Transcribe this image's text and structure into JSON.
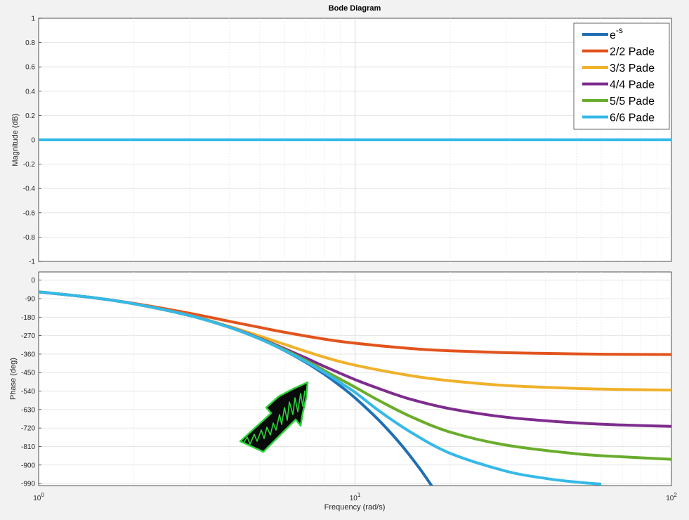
{
  "chart_data": {
    "type": "line",
    "title": "Bode Diagram",
    "xlabel": "Frequency  (rad/s)",
    "x_scale": "log",
    "xlim": [
      1,
      100
    ],
    "x_ticks": [
      {
        "value": 1,
        "base": "10",
        "exp": "0"
      },
      {
        "value": 10,
        "base": "10",
        "exp": "1"
      },
      {
        "value": 100,
        "base": "10",
        "exp": "2"
      }
    ],
    "grid": true,
    "legend_position": "top-right",
    "magnitude": {
      "ylabel": "Magnitude (dB)",
      "ylim": [
        -1,
        1
      ],
      "y_ticks": [
        "-1",
        "-0.8",
        "-0.6",
        "-0.4",
        "-0.2",
        "0",
        "0.2",
        "0.4",
        "0.6",
        "0.8",
        "1"
      ],
      "y_tick_values": [
        -1,
        -0.8,
        -0.6,
        -0.4,
        -0.2,
        0,
        0.2,
        0.4,
        0.6,
        0.8,
        1
      ],
      "value_db": 0
    },
    "phase": {
      "ylabel": "Phase (deg)",
      "ylim": [
        -1000,
        40
      ],
      "y_ticks": [
        "0",
        "-90",
        "-180",
        "-270",
        "-360",
        "-450",
        "-540",
        "-630",
        "-720",
        "-810",
        "-900",
        "-990"
      ],
      "y_tick_values": [
        0,
        -90,
        -180,
        -270,
        -360,
        -450,
        -540,
        -630,
        -720,
        -810,
        -900,
        -990
      ]
    },
    "series": [
      {
        "name": "e",
        "name_sup": "-s",
        "color": "#1f6fb4",
        "order": 1,
        "x": [
          1,
          1.5,
          2,
          3,
          4,
          5,
          6,
          7,
          8,
          9,
          10,
          12,
          14,
          16,
          17.5
        ],
        "y": [
          -57,
          -86,
          -115,
          -172,
          -229,
          -286,
          -344,
          -401,
          -458,
          -516,
          -573,
          -688,
          -802,
          -917,
          -1003
        ]
      },
      {
        "name": "2/2 Pade",
        "color": "#e2531d",
        "order": 2,
        "x": [
          1,
          1.5,
          2,
          3,
          4,
          5,
          6,
          8,
          10,
          15,
          20,
          30,
          50,
          70,
          100
        ],
        "y": [
          -57,
          -86,
          -113,
          -161,
          -200,
          -230,
          -254,
          -287,
          -307,
          -333,
          -344,
          -353,
          -359,
          -361,
          -362
        ]
      },
      {
        "name": "3/3 Pade",
        "color": "#f0b12a",
        "order": 3,
        "x": [
          1,
          1.5,
          2,
          3,
          4,
          5,
          6,
          8,
          10,
          15,
          20,
          30,
          50,
          70,
          100
        ],
        "y": [
          -57,
          -86,
          -115,
          -171,
          -225,
          -272,
          -313,
          -375,
          -414,
          -465,
          -490,
          -513,
          -527,
          -532,
          -535
        ]
      },
      {
        "name": "4/4 Pade",
        "color": "#7e2c8e",
        "order": 4,
        "x": [
          1,
          1.5,
          2,
          3,
          4,
          5,
          6,
          7,
          8,
          10,
          12,
          15,
          20,
          30,
          50,
          70,
          100
        ],
        "y": [
          -57,
          -86,
          -115,
          -172,
          -228,
          -283,
          -334,
          -379,
          -420,
          -484,
          -530,
          -580,
          -626,
          -667,
          -695,
          -705,
          -712
        ]
      },
      {
        "name": "5/5 Pade",
        "color": "#6aac2c",
        "order": 5,
        "x": [
          1,
          1.5,
          2,
          3,
          4,
          5,
          6,
          7,
          8,
          9,
          10,
          12,
          15,
          20,
          30,
          50,
          70,
          100
        ],
        "y": [
          -57,
          -86,
          -115,
          -172,
          -229,
          -285,
          -339,
          -391,
          -440,
          -483,
          -521,
          -589,
          -664,
          -740,
          -803,
          -845,
          -860,
          -872
        ]
      },
      {
        "name": "6/6 Pade",
        "color": "#35b9e8",
        "order": 6,
        "x": [
          1,
          1.5,
          2,
          3,
          4,
          5,
          6,
          7,
          8,
          9,
          10,
          12,
          15,
          20,
          30,
          40,
          50,
          60
        ],
        "y": [
          -57,
          -86,
          -115,
          -172,
          -229,
          -286,
          -343,
          -397,
          -449,
          -500,
          -546,
          -640,
          -740,
          -843,
          -930,
          -965,
          -983,
          -993
        ]
      }
    ]
  }
}
